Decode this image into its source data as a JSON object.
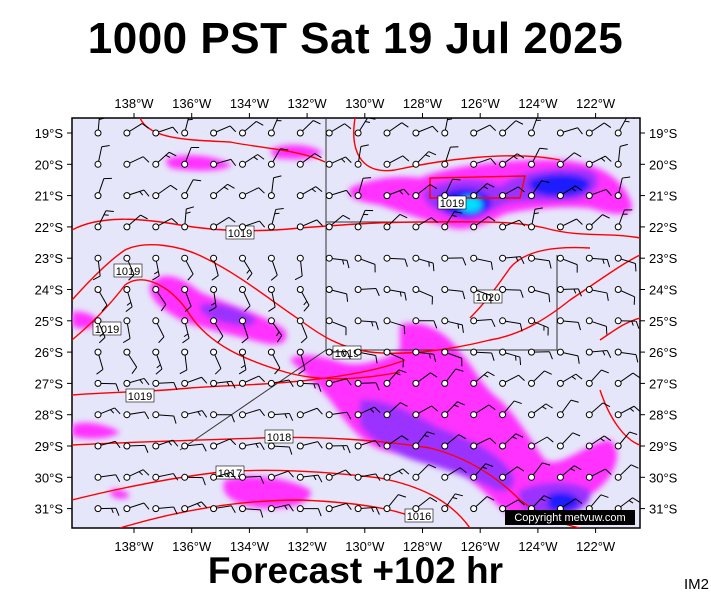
{
  "title": "1000 PST Sat 19 Jul 2025",
  "footer": "Forecast +102 hr",
  "code": "IM2",
  "copyright": "Copyright metvuw.com",
  "lon_labels": [
    "138°W",
    "136°W",
    "134°W",
    "132°W",
    "130°W",
    "128°W",
    "126°W",
    "124°W",
    "122°W"
  ],
  "lat_labels": [
    "19°S",
    "20°S",
    "21°S",
    "22°S",
    "23°S",
    "24°S",
    "25°S",
    "26°S",
    "27°S",
    "28°S",
    "29°S",
    "30°S",
    "31°S"
  ],
  "isobar_labels": [
    "1019",
    "1019",
    "1019",
    "1019",
    "1019",
    "1019",
    "1020",
    "1018",
    "1017",
    "1016"
  ],
  "colors": {
    "map_background": "#e6e6fa",
    "rain_light": "#ff00ff",
    "rain_medium": "#9b30ff",
    "rain_heavy": "#1a1aff",
    "rain_core": "#00e0ff",
    "isobar": "#ff0000",
    "barb": "#000000"
  }
}
